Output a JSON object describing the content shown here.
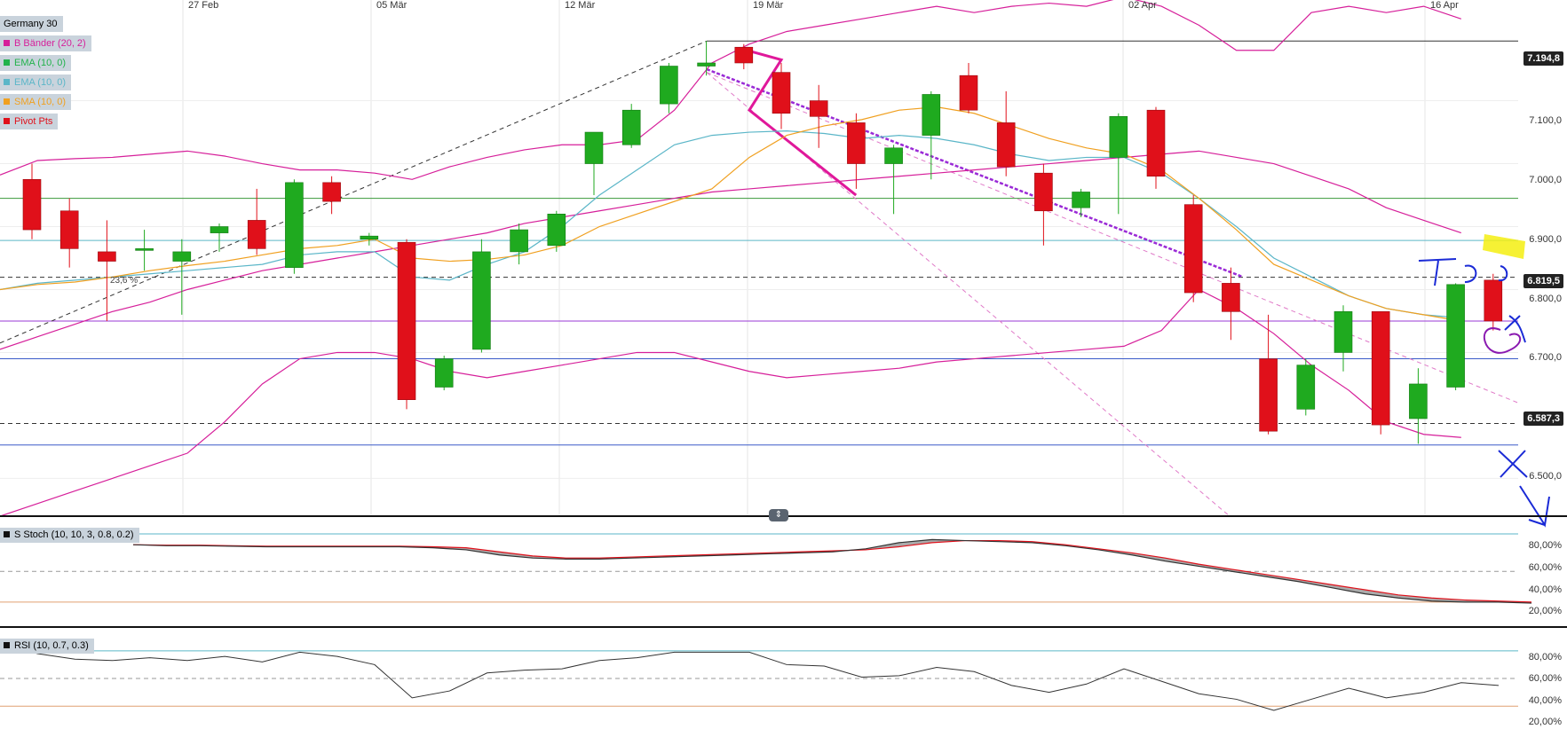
{
  "title": "Germany 30",
  "legend": [
    {
      "label": "B Bänder (20, 2)",
      "color": "#d61f9a"
    },
    {
      "label": "EMA (10, 0)",
      "color": "#22b24c"
    },
    {
      "label": "EMA (10, 0)",
      "color": "#5bb6c8"
    },
    {
      "label": "SMA (10, 0)",
      "color": "#f0a020"
    },
    {
      "label": "Pivot Pts",
      "color": "#e0101a"
    }
  ],
  "annotations": {
    "fib_label": "23,6 %",
    "handwritten": "Handwritten marks (blue/purple) near the last candles"
  },
  "price_tags": [
    "7.194,8",
    "6.819,5",
    "6.587,3"
  ],
  "stoch": {
    "label": "S Stoch (10, 10, 3, 0.8, 0.2)",
    "ticks": [
      "80,00%",
      "60,00%",
      "40,00%",
      "20,00%"
    ]
  },
  "rsi": {
    "label": "RSI (10, 0.7, 0.3)",
    "ticks": [
      "80,00%",
      "60,00%",
      "40,00%",
      "20,00%"
    ]
  },
  "colors": {
    "up": "#1faa1f",
    "down": "#e0101a",
    "boll": "#d61f9a",
    "ema": "#5bb6c8",
    "sma": "#f0a020"
  },
  "chart_data": [
    {
      "type": "candlestick",
      "title": "Germany 30",
      "x_ticks": [
        "27 Feb",
        "05 Mär",
        "12 Mär",
        "19 Mär",
        "02 Apr",
        "16 Apr"
      ],
      "y_ticks": [
        "7.100,0",
        "7.000,0",
        "6.900,0",
        "6.800,0",
        "6.700,0",
        "6.500,0"
      ],
      "ylim": [
        6440,
        7260
      ],
      "candles": [
        {
          "o": 6975,
          "h": 7000,
          "l": 6880,
          "c": 6895
        },
        {
          "o": 6925,
          "h": 6945,
          "l": 6835,
          "c": 6865
        },
        {
          "o": 6860,
          "h": 6910,
          "l": 6750,
          "c": 6845
        },
        {
          "o": 6865,
          "h": 6895,
          "l": 6830,
          "c": 6865
        },
        {
          "o": 6845,
          "h": 6880,
          "l": 6760,
          "c": 6860
        },
        {
          "o": 6890,
          "h": 6905,
          "l": 6860,
          "c": 6900
        },
        {
          "o": 6910,
          "h": 6960,
          "l": 6855,
          "c": 6865
        },
        {
          "o": 6835,
          "h": 6975,
          "l": 6825,
          "c": 6970
        },
        {
          "o": 6970,
          "h": 6980,
          "l": 6920,
          "c": 6940
        },
        {
          "o": 6880,
          "h": 6890,
          "l": 6870,
          "c": 6885
        },
        {
          "o": 6875,
          "h": 6880,
          "l": 6610,
          "c": 6625
        },
        {
          "o": 6645,
          "h": 6695,
          "l": 6640,
          "c": 6690
        },
        {
          "o": 6705,
          "h": 6880,
          "l": 6700,
          "c": 6860
        },
        {
          "o": 6860,
          "h": 6905,
          "l": 6840,
          "c": 6895
        },
        {
          "o": 6870,
          "h": 6925,
          "l": 6860,
          "c": 6920
        },
        {
          "o": 7000,
          "h": 7050,
          "l": 6950,
          "c": 7050
        },
        {
          "o": 7030,
          "h": 7095,
          "l": 7025,
          "c": 7085
        },
        {
          "o": 7095,
          "h": 7160,
          "l": 7080,
          "c": 7155
        },
        {
          "o": 7155,
          "h": 7195,
          "l": 7140,
          "c": 7160
        },
        {
          "o": 7185,
          "h": 7190,
          "l": 7150,
          "c": 7160
        },
        {
          "o": 7145,
          "h": 7160,
          "l": 7055,
          "c": 7080
        },
        {
          "o": 7100,
          "h": 7125,
          "l": 7025,
          "c": 7075
        },
        {
          "o": 7065,
          "h": 7080,
          "l": 6960,
          "c": 7000
        },
        {
          "o": 7000,
          "h": 7030,
          "l": 6920,
          "c": 7025
        },
        {
          "o": 7045,
          "h": 7115,
          "l": 6975,
          "c": 7110
        },
        {
          "o": 7140,
          "h": 7160,
          "l": 7080,
          "c": 7085
        },
        {
          "o": 7065,
          "h": 7115,
          "l": 6980,
          "c": 6995
        },
        {
          "o": 6985,
          "h": 7000,
          "l": 6870,
          "c": 6925
        },
        {
          "o": 6930,
          "h": 6960,
          "l": 6915,
          "c": 6955
        },
        {
          "o": 7010,
          "h": 7080,
          "l": 6920,
          "c": 7075
        },
        {
          "o": 7085,
          "h": 7090,
          "l": 6960,
          "c": 6980
        },
        {
          "o": 6935,
          "h": 6950,
          "l": 6780,
          "c": 6795
        },
        {
          "o": 6810,
          "h": 6835,
          "l": 6720,
          "c": 6765
        },
        {
          "o": 6690,
          "h": 6760,
          "l": 6570,
          "c": 6575
        },
        {
          "o": 6610,
          "h": 6690,
          "l": 6600,
          "c": 6680
        },
        {
          "o": 6700,
          "h": 6775,
          "l": 6670,
          "c": 6765
        },
        {
          "o": 6765,
          "h": 6765,
          "l": 6570,
          "c": 6585
        },
        {
          "o": 6595,
          "h": 6675,
          "l": 6555,
          "c": 6650
        },
        {
          "o": 6645,
          "h": 6810,
          "l": 6640,
          "c": 6808
        },
        {
          "o": 6815,
          "h": 6825,
          "l": 6735,
          "c": 6750
        }
      ],
      "series": [
        {
          "key": "boll_upper",
          "values": [
            6982,
            7005,
            7008,
            7010,
            7015,
            7020,
            7012,
            7000,
            6990,
            6990,
            6985,
            6975,
            6995,
            7010,
            7022,
            7030,
            7030,
            7038,
            7085,
            7160,
            7190,
            7210,
            7220,
            7230,
            7240,
            7250,
            7240,
            7250,
            7255,
            7250,
            7265,
            7250,
            7220,
            7180,
            7180,
            7240,
            7250,
            7240,
            7250,
            7230
          ]
        },
        {
          "key": "boll_mid",
          "values": [
            6705,
            6725,
            6745,
            6765,
            6780,
            6800,
            6815,
            6830,
            6840,
            6850,
            6860,
            6870,
            6880,
            6890,
            6905,
            6915,
            6925,
            6935,
            6945,
            6955,
            6960,
            6965,
            6970,
            6975,
            6980,
            6985,
            6990,
            6995,
            7000,
            7005,
            7010,
            7015,
            7020,
            7010,
            7000,
            6980,
            6960,
            6930,
            6910,
            6890
          ]
        },
        {
          "key": "boll_lower",
          "values": [
            6440,
            6460,
            6480,
            6500,
            6520,
            6540,
            6590,
            6650,
            6690,
            6700,
            6700,
            6690,
            6670,
            6660,
            6670,
            6680,
            6690,
            6700,
            6700,
            6685,
            6670,
            6660,
            6665,
            6670,
            6675,
            6685,
            6690,
            6695,
            6700,
            6705,
            6710,
            6735,
            6800,
            6770,
            6730,
            6680,
            6640,
            6590,
            6570,
            6565
          ]
        },
        {
          "key": "ema",
          "values": [
            6800,
            6810,
            6815,
            6820,
            6825,
            6830,
            6835,
            6840,
            6855,
            6860,
            6860,
            6820,
            6815,
            6840,
            6860,
            6900,
            6950,
            6990,
            7030,
            7045,
            7050,
            7052,
            7048,
            7040,
            7045,
            7040,
            7030,
            7015,
            7005,
            7010,
            7010,
            6985,
            6945,
            6900,
            6850,
            6820,
            6790,
            6770,
            6760,
            6755
          ]
        },
        {
          "key": "sma",
          "values": [
            6800,
            6808,
            6812,
            6820,
            6830,
            6838,
            6845,
            6855,
            6865,
            6870,
            6880,
            6850,
            6845,
            6848,
            6855,
            6870,
            6900,
            6920,
            6940,
            6960,
            7010,
            7045,
            7060,
            7070,
            7085,
            7090,
            7080,
            7060,
            7040,
            7025,
            7015,
            6990,
            6945,
            6895,
            6840,
            6815,
            6790,
            6770,
            6760,
            6750
          ]
        }
      ]
    },
    {
      "type": "line",
      "title": "S Stoch (10, 10, 3, 0.8, 0.2)",
      "ylim": [
        10,
        100
      ],
      "y_ticks": [
        "80,00%",
        "60,00%",
        "40,00%",
        "20,00%"
      ],
      "series": [
        {
          "key": "stoch_k",
          "values": [
            86,
            85,
            85,
            84.5,
            84,
            84,
            84,
            84,
            84,
            83,
            81,
            76,
            73,
            72,
            72,
            73,
            74,
            75,
            76,
            77,
            78,
            79,
            82,
            88,
            91,
            90,
            89,
            88,
            85,
            81,
            76,
            70,
            65,
            60,
            55,
            50,
            44,
            38,
            34,
            31,
            30,
            30,
            29
          ]
        },
        {
          "key": "stoch_d",
          "values": [
            86,
            85.5,
            85.5,
            85,
            84.5,
            84.5,
            84.5,
            84.5,
            84.5,
            84,
            83,
            79,
            75,
            73,
            73,
            74,
            75,
            76,
            77,
            78,
            79,
            80,
            81,
            84,
            88,
            90,
            90,
            89,
            86,
            82,
            78,
            73,
            67,
            62,
            57,
            52,
            47,
            42,
            37,
            34,
            32,
            31,
            30
          ]
        }
      ]
    },
    {
      "type": "line",
      "title": "RSI (10, 0.7, 0.3)",
      "ylim": [
        15,
        90
      ],
      "y_ticks": [
        "80,00%",
        "60,00%",
        "40,00%",
        "20,00%"
      ],
      "series": [
        {
          "key": "rsi",
          "values": [
            82,
            74,
            70,
            69,
            71,
            69,
            72,
            68,
            75,
            72,
            66,
            42,
            47,
            60,
            62,
            63,
            69,
            71,
            75,
            75,
            75,
            66,
            65,
            57,
            58,
            64,
            61,
            51,
            46,
            52,
            63,
            54,
            45,
            41,
            33,
            41,
            49,
            42,
            46,
            53,
            51
          ]
        }
      ]
    }
  ]
}
